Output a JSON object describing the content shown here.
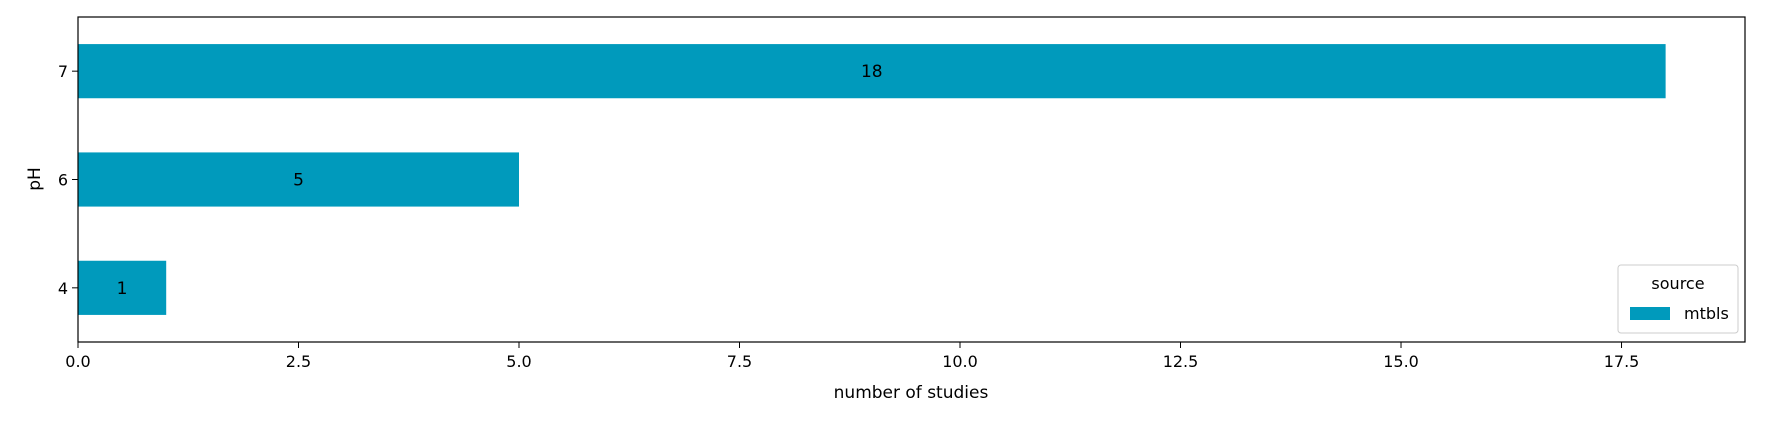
{
  "chart_data": {
    "type": "bar",
    "orientation": "horizontal",
    "categories": [
      "4",
      "6",
      "7"
    ],
    "series": [
      {
        "name": "mtbls",
        "values": [
          1,
          5,
          18
        ],
        "color": "#009ABC"
      }
    ],
    "data_labels": [
      "1",
      "5",
      "18"
    ],
    "xlabel": "number of studies",
    "ylabel": "pH",
    "xlim": [
      0,
      18.9
    ],
    "xticks": [
      "0.0",
      "2.5",
      "5.0",
      "7.5",
      "10.0",
      "12.5",
      "15.0",
      "17.5"
    ],
    "grid": false,
    "legend": {
      "title": "source",
      "entries": [
        "mtbls"
      ],
      "placement": "lower-right"
    }
  }
}
